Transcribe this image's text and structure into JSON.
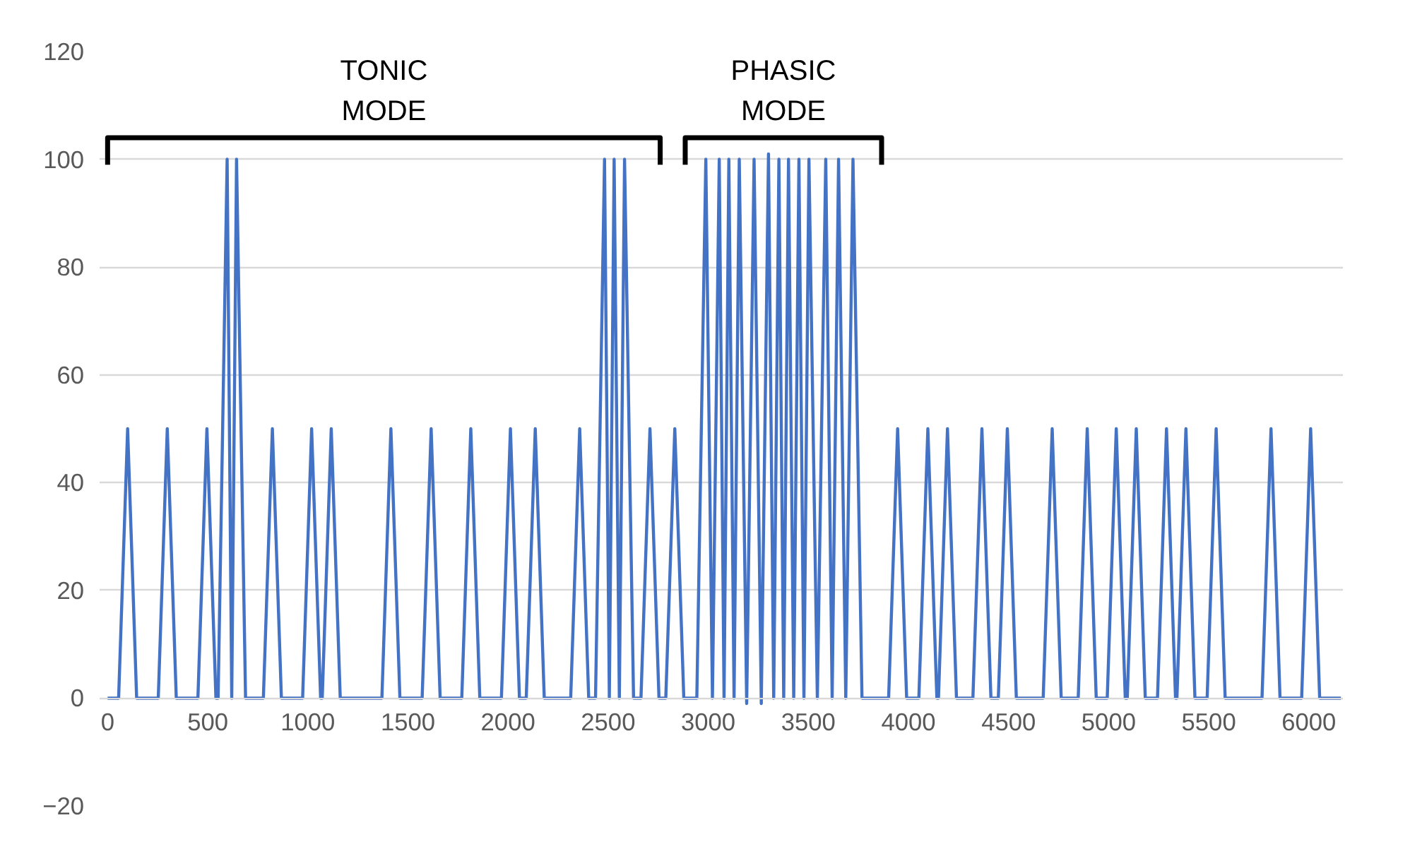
{
  "chart_data": {
    "type": "line",
    "x": [
      0,
      55,
      100,
      145,
      253,
      298,
      343,
      451,
      496,
      541,
      552,
      597,
      620,
      644,
      689,
      778,
      823,
      868,
      974,
      1019,
      1064,
      1072,
      1117,
      1162,
      1370,
      1415,
      1460,
      1571,
      1616,
      1661,
      1769,
      1814,
      1859,
      1967,
      2012,
      2057,
      2091,
      2136,
      2181,
      2313,
      2358,
      2403,
      2437,
      2482,
      2506,
      2530,
      2556,
      2582,
      2627,
      2664,
      2709,
      2754,
      2788,
      2833,
      2878,
      2943,
      2988,
      3021,
      3055,
      3079,
      3103,
      3129,
      3155,
      3192,
      3229,
      3265,
      3301,
      3327,
      3353,
      3377,
      3401,
      3427,
      3453,
      3478,
      3503,
      3545,
      3587,
      3619,
      3651,
      3687,
      3723,
      3768,
      3901,
      3946,
      3991,
      4052,
      4097,
      4142,
      4150,
      4195,
      4240,
      4322,
      4367,
      4412,
      4449,
      4494,
      4539,
      4673,
      4718,
      4763,
      4848,
      4893,
      4938,
      4993,
      5038,
      5083,
      5093,
      5138,
      5183,
      5244,
      5289,
      5334,
      5341,
      5386,
      5431,
      5492,
      5537,
      5582,
      5766,
      5811,
      5856,
      5964,
      6009,
      6054,
      6160
    ],
    "series": [
      {
        "color": "#4472c4",
        "values": [
          0,
          0,
          50,
          0,
          0,
          50,
          0,
          0,
          50,
          0,
          0,
          100,
          0,
          100,
          0,
          0,
          50,
          0,
          0,
          50,
          0,
          0,
          50,
          0,
          0,
          50,
          0,
          0,
          50,
          0,
          0,
          50,
          0,
          0,
          50,
          0,
          0,
          50,
          0,
          0,
          50,
          0,
          0,
          100,
          0,
          100,
          0,
          100,
          0,
          0,
          50,
          0,
          0,
          50,
          0,
          0,
          100,
          0,
          100,
          0,
          100,
          0,
          100,
          -1,
          100,
          -1,
          101,
          0,
          100,
          0,
          100,
          0,
          100,
          0,
          100,
          0,
          100,
          0,
          100,
          0,
          100,
          0,
          0,
          50,
          0,
          0,
          50,
          0,
          0,
          50,
          0,
          0,
          50,
          0,
          0,
          50,
          0,
          0,
          50,
          0,
          0,
          50,
          0,
          0,
          50,
          0,
          0,
          50,
          0,
          0,
          50,
          0,
          0,
          50,
          0,
          0,
          50,
          0,
          0,
          50,
          0,
          0,
          50,
          0,
          0
        ]
      },
      {
        "color": "#000000",
        "x": [
          0,
          0,
          2760,
          2760
        ],
        "values": [
          99,
          104,
          104,
          99
        ]
      },
      {
        "color": "#000000",
        "x": [
          2885,
          2885,
          3866,
          3866
        ],
        "values": [
          99,
          104,
          104,
          99
        ]
      }
    ],
    "xlim": [
      -40,
      6170
    ],
    "xticks": [
      0,
      500,
      1000,
      1500,
      2000,
      2500,
      3000,
      3500,
      4000,
      4500,
      5000,
      5500,
      6000
    ],
    "ylim": [
      -20,
      120
    ],
    "yticks": [
      -20,
      0,
      20,
      40,
      60,
      80,
      100,
      120
    ],
    "grid": "y",
    "marker": "none",
    "line_style": "solid",
    "annotations": [
      "TONIC\nMODE",
      "PHASIC\nMODE"
    ]
  }
}
